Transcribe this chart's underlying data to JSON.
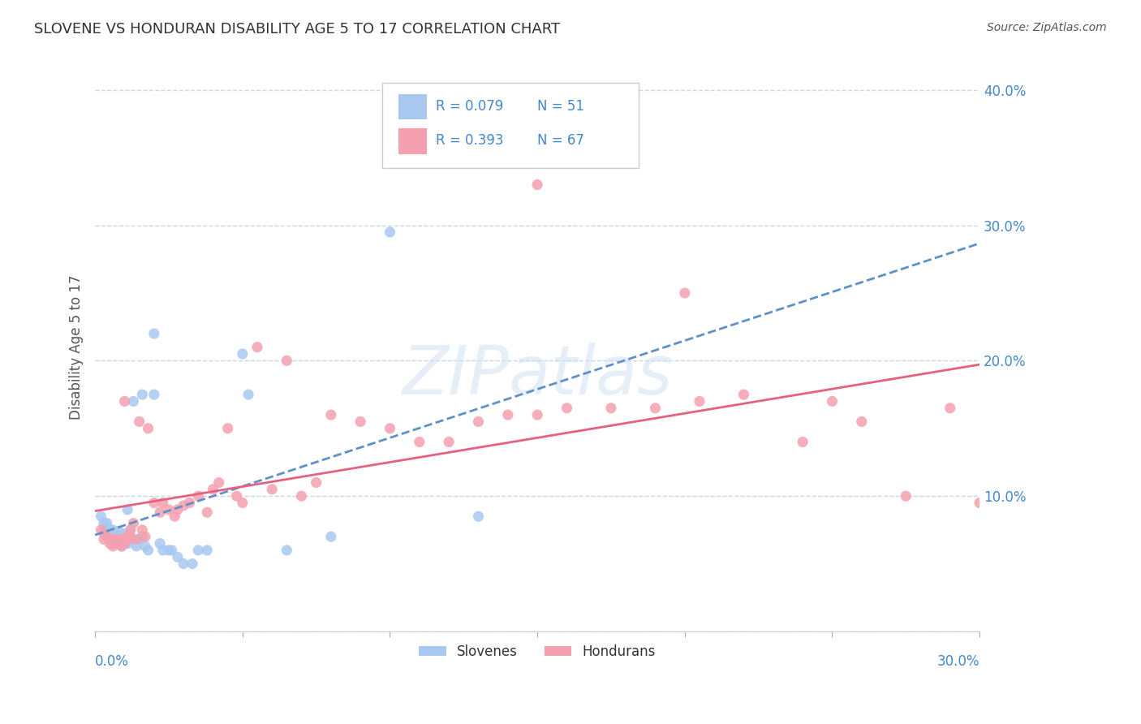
{
  "title": "SLOVENE VS HONDURAN DISABILITY AGE 5 TO 17 CORRELATION CHART",
  "source": "Source: ZipAtlas.com",
  "ylabel_label": "Disability Age 5 to 17",
  "ylabel_ticks": [
    0,
    0.1,
    0.2,
    0.3,
    0.4
  ],
  "ylabel_labels": [
    "",
    "10.0%",
    "20.0%",
    "30.0%",
    "40.0%"
  ],
  "xlim": [
    0,
    0.3
  ],
  "ylim": [
    0,
    0.42
  ],
  "watermark": "ZIPatlas",
  "R_slovene": "R = 0.079",
  "N_slovene": "N = 51",
  "R_honduran": "R = 0.393",
  "N_honduran": "N = 67",
  "slovene_color": "#a8c8f0",
  "honduran_color": "#f5a0b0",
  "slovene_line_color": "#6090c8",
  "honduran_line_color": "#e86080",
  "background_color": "#ffffff",
  "grid_color": "#c8d8e8",
  "title_color": "#333333",
  "axis_label_color": "#4488cc",
  "source_color": "#555555",
  "ylabel_color": "#555555",
  "legend_label_slovene": "Slovenes",
  "legend_label_honduran": "Hondurans",
  "slovene_x": [
    0.002,
    0.003,
    0.003,
    0.004,
    0.004,
    0.005,
    0.005,
    0.005,
    0.006,
    0.006,
    0.006,
    0.007,
    0.007,
    0.007,
    0.008,
    0.008,
    0.008,
    0.008,
    0.009,
    0.009,
    0.01,
    0.01,
    0.01,
    0.011,
    0.011,
    0.012,
    0.012,
    0.013,
    0.014,
    0.015,
    0.016,
    0.016,
    0.017,
    0.018,
    0.02,
    0.02,
    0.022,
    0.023,
    0.025,
    0.026,
    0.028,
    0.03,
    0.033,
    0.035,
    0.038,
    0.05,
    0.052,
    0.065,
    0.08,
    0.1,
    0.13
  ],
  "slovene_y": [
    0.085,
    0.075,
    0.08,
    0.07,
    0.08,
    0.068,
    0.072,
    0.075,
    0.065,
    0.07,
    0.075,
    0.068,
    0.07,
    0.072,
    0.065,
    0.068,
    0.07,
    0.074,
    0.063,
    0.07,
    0.065,
    0.068,
    0.072,
    0.065,
    0.09,
    0.068,
    0.075,
    0.17,
    0.063,
    0.068,
    0.07,
    0.175,
    0.063,
    0.06,
    0.175,
    0.22,
    0.065,
    0.06,
    0.06,
    0.06,
    0.055,
    0.05,
    0.05,
    0.06,
    0.06,
    0.205,
    0.175,
    0.06,
    0.07,
    0.295,
    0.085
  ],
  "honduran_x": [
    0.002,
    0.003,
    0.003,
    0.004,
    0.005,
    0.005,
    0.006,
    0.006,
    0.007,
    0.007,
    0.008,
    0.008,
    0.009,
    0.009,
    0.01,
    0.01,
    0.011,
    0.011,
    0.012,
    0.012,
    0.013,
    0.014,
    0.015,
    0.016,
    0.017,
    0.018,
    0.02,
    0.022,
    0.023,
    0.025,
    0.027,
    0.028,
    0.03,
    0.032,
    0.035,
    0.038,
    0.04,
    0.042,
    0.045,
    0.048,
    0.05,
    0.055,
    0.06,
    0.065,
    0.07,
    0.075,
    0.08,
    0.09,
    0.1,
    0.11,
    0.12,
    0.13,
    0.14,
    0.15,
    0.16,
    0.175,
    0.19,
    0.205,
    0.22,
    0.24,
    0.26,
    0.275,
    0.29,
    0.3,
    0.15,
    0.2,
    0.25
  ],
  "honduran_y": [
    0.075,
    0.068,
    0.072,
    0.07,
    0.065,
    0.068,
    0.063,
    0.068,
    0.065,
    0.068,
    0.065,
    0.068,
    0.063,
    0.068,
    0.065,
    0.17,
    0.07,
    0.068,
    0.07,
    0.075,
    0.08,
    0.068,
    0.155,
    0.075,
    0.07,
    0.15,
    0.095,
    0.088,
    0.095,
    0.09,
    0.085,
    0.09,
    0.093,
    0.095,
    0.1,
    0.088,
    0.105,
    0.11,
    0.15,
    0.1,
    0.095,
    0.21,
    0.105,
    0.2,
    0.1,
    0.11,
    0.16,
    0.155,
    0.15,
    0.14,
    0.14,
    0.155,
    0.16,
    0.16,
    0.165,
    0.165,
    0.165,
    0.17,
    0.175,
    0.14,
    0.155,
    0.1,
    0.165,
    0.095,
    0.33,
    0.25,
    0.17
  ]
}
